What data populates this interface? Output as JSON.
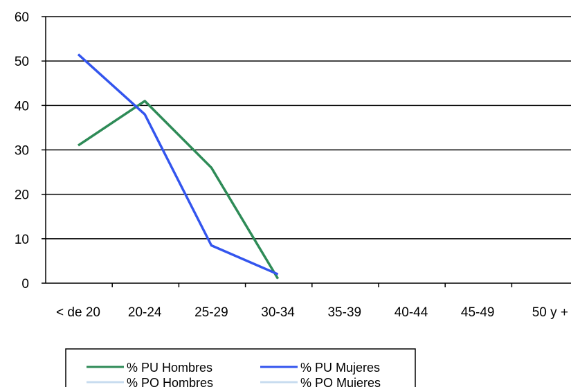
{
  "chart_data": {
    "type": "line",
    "title": "",
    "xlabel": "",
    "ylabel": "",
    "categories": [
      "< de 20",
      "20-24",
      "25-29",
      "30-34",
      "35-39",
      "40-44",
      "45-49",
      "50 y +"
    ],
    "ylim": [
      0,
      60
    ],
    "yticks": [
      0,
      10,
      20,
      30,
      40,
      50,
      60
    ],
    "grid": "horizontal",
    "legend_position": "bottom-left",
    "series": [
      {
        "name": "% PU Hombres",
        "color": "#2e8b57",
        "values": [
          31,
          41,
          26,
          1,
          null,
          null,
          null,
          null
        ]
      },
      {
        "name": "% PU Mujeres",
        "color": "#3355ee",
        "values": [
          51.5,
          38,
          8.5,
          2,
          null,
          null,
          null,
          null
        ]
      },
      {
        "name": "% PO Hombres",
        "color": "#c8dcef",
        "values": [
          null,
          null,
          null,
          null,
          null,
          null,
          null,
          null
        ]
      },
      {
        "name": "% PO Mujeres",
        "color": "#c8dcef",
        "values": [
          null,
          null,
          null,
          null,
          null,
          null,
          null,
          null
        ]
      }
    ]
  }
}
